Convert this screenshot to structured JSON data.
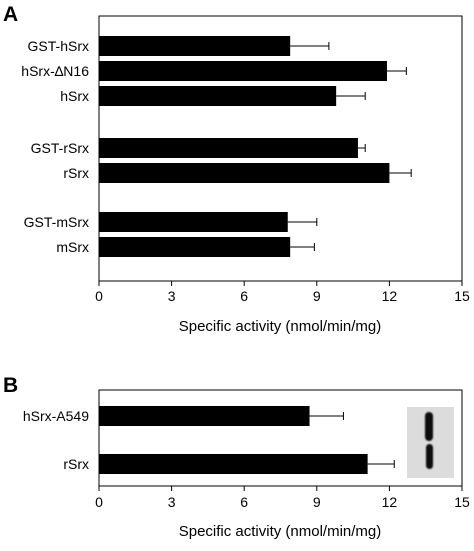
{
  "chart_data": [
    {
      "type": "bar",
      "orientation": "horizontal",
      "panel_label": "A",
      "categories": [
        "GST-hSrx",
        "hSrx-∆N16",
        "hSrx",
        "GST-rSrx",
        "rSrx",
        "GST-mSrx",
        "mSrx"
      ],
      "groups": [
        [
          0,
          1,
          2
        ],
        [
          3,
          4
        ],
        [
          5,
          6
        ]
      ],
      "values": [
        7.9,
        11.9,
        9.8,
        10.7,
        12.0,
        7.8,
        7.9
      ],
      "errors": [
        1.6,
        0.8,
        1.2,
        0.3,
        0.9,
        1.2,
        1.0
      ],
      "xlabel": "Specific activity (nmol/min/mg)",
      "ylabel": "",
      "xlim": [
        0,
        15
      ],
      "xticks": [
        "0",
        "3",
        "6",
        "9",
        "12",
        "15"
      ],
      "grid": false,
      "bar_color": "#000000"
    },
    {
      "type": "bar",
      "orientation": "horizontal",
      "panel_label": "B",
      "categories": [
        "hSrx-A549",
        "rSrx"
      ],
      "values": [
        8.7,
        11.1
      ],
      "errors": [
        1.4,
        1.1
      ],
      "xlabel": "Specific activity (nmol/min/mg)",
      "ylabel": "",
      "xlim": [
        0,
        15
      ],
      "xticks": [
        "0",
        "3",
        "6",
        "9",
        "12",
        "15"
      ],
      "grid": false,
      "bar_color": "#000000",
      "inset": "western-blot-image"
    }
  ]
}
